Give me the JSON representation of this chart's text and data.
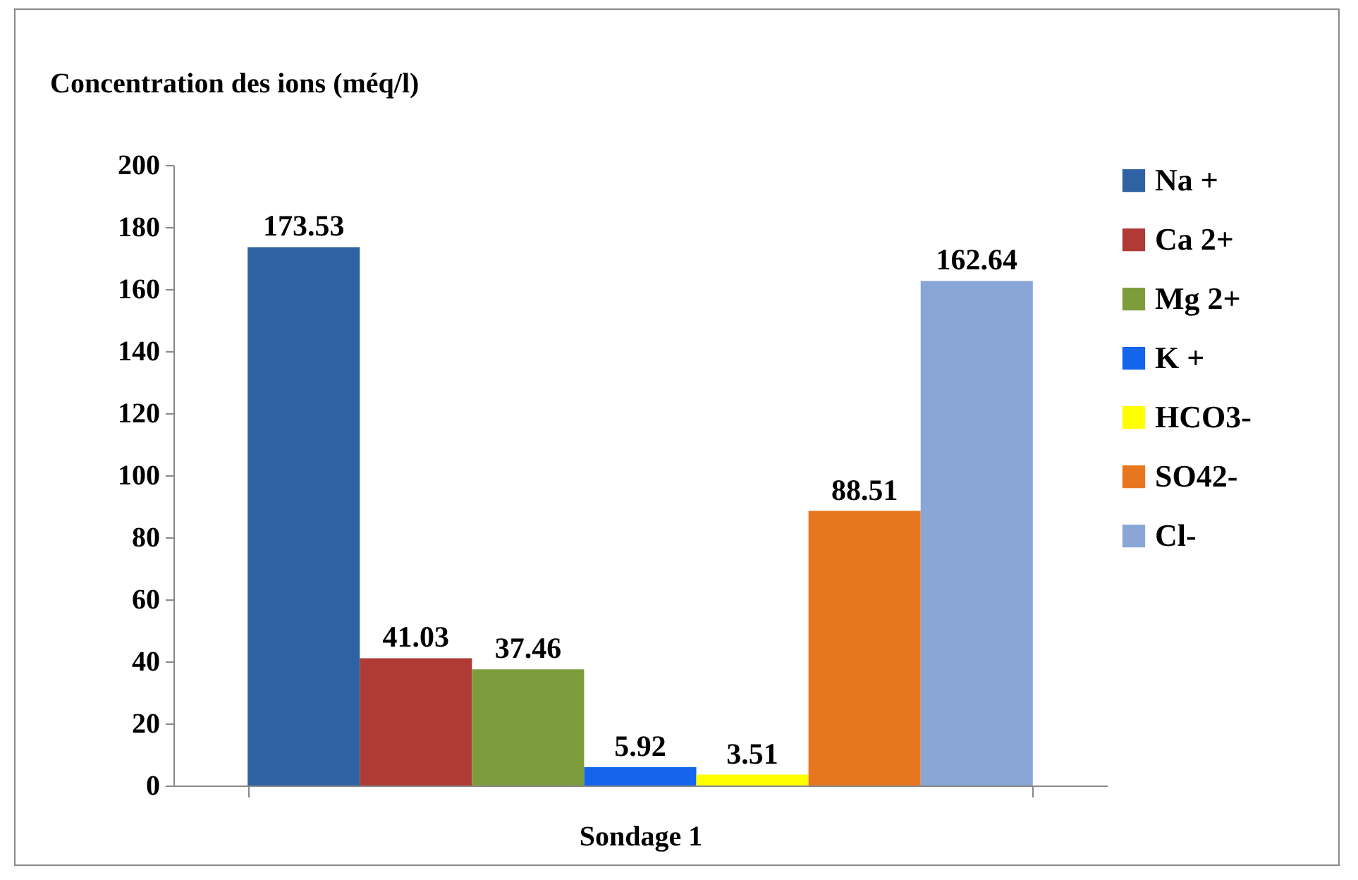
{
  "chart_data": {
    "type": "bar",
    "ylabel": "Concentration des ions  (méq/l)",
    "categories": [
      "Sondage 1"
    ],
    "series": [
      {
        "name": "Na +",
        "color": "#2f62a3",
        "values": [
          173.53
        ]
      },
      {
        "name": "Ca 2+",
        "color": "#b03a36",
        "values": [
          41.03
        ]
      },
      {
        "name": "Mg 2+",
        "color": "#7d9d3c",
        "values": [
          37.46
        ]
      },
      {
        "name": "K +",
        "color": "#1464ec",
        "values": [
          5.92
        ]
      },
      {
        "name": "HCO3-",
        "color": "#ffff00",
        "values": [
          3.51
        ]
      },
      {
        "name": "SO42-",
        "color": "#e8761f",
        "values": [
          88.51
        ]
      },
      {
        "name": "Cl-",
        "color": "#8aa6d6",
        "values": [
          162.64
        ]
      }
    ],
    "ylim": [
      0,
      200
    ],
    "yticks": [
      0,
      20,
      40,
      60,
      80,
      100,
      120,
      140,
      160,
      180,
      200
    ],
    "grid": false,
    "legend": "right",
    "data_labels": true
  }
}
